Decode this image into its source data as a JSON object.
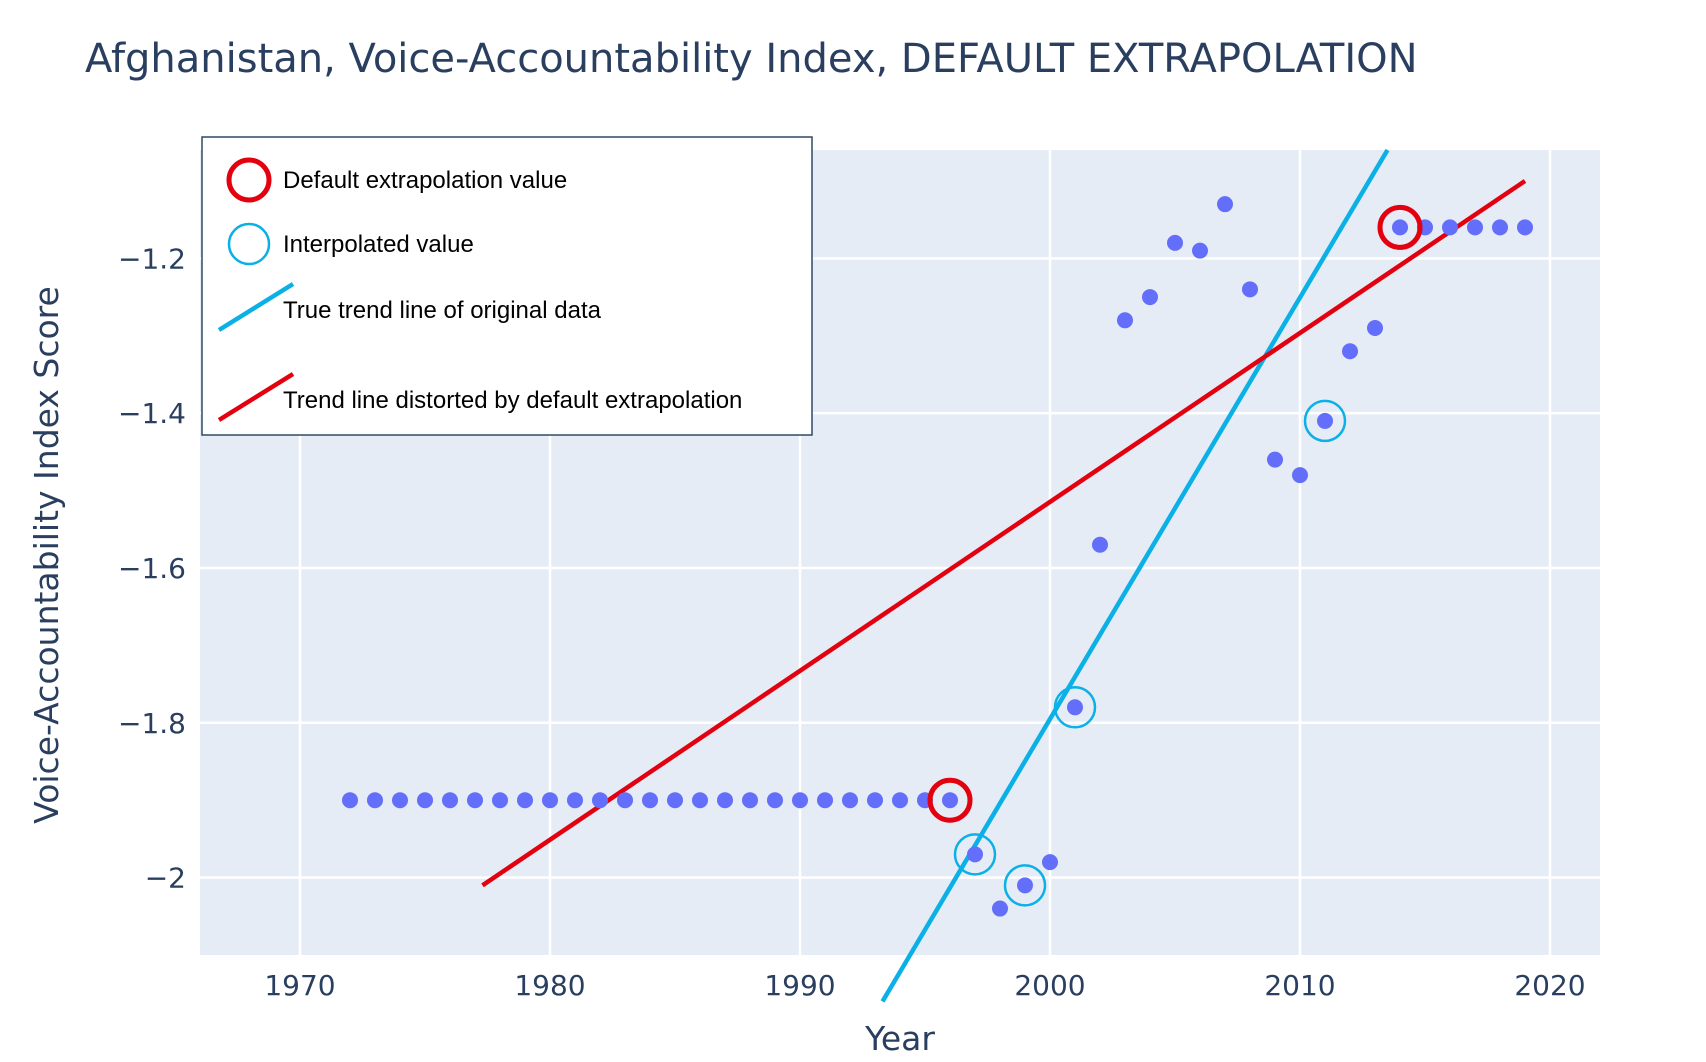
{
  "chart_data": {
    "type": "scatter",
    "title": "Afghanistan, Voice-Accountability Index, DEFAULT EXTRAPOLATION",
    "xlabel": "Year",
    "ylabel": "Voice-Accountability Index Score",
    "xlim": [
      1966,
      2022
    ],
    "ylim": [
      -2.1,
      -1.06
    ],
    "x_ticks": [
      1970,
      1980,
      1990,
      2000,
      2010,
      2020
    ],
    "y_ticks": [
      -1.2,
      -1.4,
      -1.6,
      -1.8,
      -2
    ],
    "x_tick_labels": [
      "1970",
      "1980",
      "1990",
      "2000",
      "2010",
      "2020"
    ],
    "y_tick_labels": [
      "−1.2",
      "−1.4",
      "−1.6",
      "−1.8",
      "−2"
    ],
    "grid": true,
    "legend_position": "top-left",
    "series": [
      {
        "name": "",
        "type": "scatter",
        "color": "#636efa",
        "x": [
          1972,
          1973,
          1974,
          1975,
          1976,
          1977,
          1978,
          1979,
          1980,
          1981,
          1982,
          1983,
          1984,
          1985,
          1986,
          1987,
          1988,
          1989,
          1990,
          1991,
          1992,
          1993,
          1994,
          1995,
          1996,
          1997,
          1998,
          1999,
          2000,
          2001,
          2002,
          2003,
          2004,
          2005,
          2006,
          2007,
          2008,
          2009,
          2010,
          2011,
          2012,
          2013,
          2014,
          2015,
          2016,
          2017,
          2018,
          2019
        ],
        "y": [
          -1.9,
          -1.9,
          -1.9,
          -1.9,
          -1.9,
          -1.9,
          -1.9,
          -1.9,
          -1.9,
          -1.9,
          -1.9,
          -1.9,
          -1.9,
          -1.9,
          -1.9,
          -1.9,
          -1.9,
          -1.9,
          -1.9,
          -1.9,
          -1.9,
          -1.9,
          -1.9,
          -1.9,
          -1.9,
          -1.97,
          -2.04,
          -2.01,
          -1.98,
          -1.78,
          -1.57,
          -1.28,
          -1.25,
          -1.18,
          -1.19,
          -1.13,
          -1.24,
          -1.46,
          -1.48,
          -1.41,
          -1.32,
          -1.29,
          -1.16,
          -1.16,
          -1.16,
          -1.16,
          -1.16,
          -1.16
        ]
      },
      {
        "name": "Default extrapolation value",
        "type": "marker-circle",
        "color": "#e3000f",
        "x": [
          1996,
          2014
        ],
        "y": [
          -1.9,
          -1.16
        ]
      },
      {
        "name": "Interpolated value",
        "type": "marker-circle",
        "color": "#0ab0e6",
        "x": [
          1997,
          1999,
          2001,
          2011
        ],
        "y": [
          -1.97,
          -2.01,
          -1.78,
          -1.41
        ]
      },
      {
        "name": "True trend line of original data",
        "type": "line",
        "color": "#0ab0e6",
        "x": [
          1993.3,
          2013.5
        ],
        "y": [
          -2.16,
          -1.06
        ]
      },
      {
        "name": "Trend line distorted by default extrapolation",
        "type": "line",
        "color": "#e3000f",
        "x": [
          1977.3,
          2019.0
        ],
        "y": [
          -2.01,
          -1.1
        ]
      }
    ]
  }
}
